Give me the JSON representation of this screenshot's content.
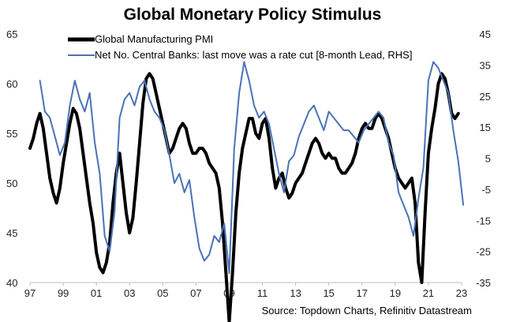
{
  "chart_data": {
    "type": "line",
    "title": "Global Monetary Policy Stimulus",
    "source": "Source: Topdown Charts, Refinitiv Datastream",
    "x_ticks": [
      "97",
      "99",
      "01",
      "03",
      "05",
      "07",
      "09",
      "11",
      "13",
      "15",
      "17",
      "19",
      "21",
      "23"
    ],
    "x_tick_years": [
      1997,
      1999,
      2001,
      2003,
      2005,
      2007,
      2009,
      2011,
      2013,
      2015,
      2017,
      2019,
      2021,
      2023
    ],
    "xlim": [
      1997,
      2023
    ],
    "left_axis": {
      "ticks": [
        "40",
        "45",
        "50",
        "55",
        "60",
        "65"
      ],
      "tick_values": [
        40,
        45,
        50,
        55,
        60,
        65
      ],
      "ylim": [
        40,
        65
      ]
    },
    "right_axis": {
      "ticks": [
        "-35",
        "-25",
        "-15",
        "-5",
        "5",
        "15",
        "25",
        "35",
        "45"
      ],
      "tick_values": [
        -35,
        -25,
        -15,
        -5,
        5,
        15,
        25,
        35,
        45
      ],
      "ylim": [
        -35,
        45
      ]
    },
    "series": [
      {
        "name": "Global Manufacturing PMI",
        "axis": "left",
        "color": "#000000",
        "x": [
          1997.0,
          1997.2,
          1997.4,
          1997.6,
          1997.8,
          1998.0,
          1998.2,
          1998.4,
          1998.6,
          1998.8,
          1999.0,
          1999.2,
          1999.4,
          1999.6,
          1999.8,
          2000.0,
          2000.2,
          2000.4,
          2000.6,
          2000.8,
          2001.0,
          2001.2,
          2001.4,
          2001.6,
          2001.8,
          2002.0,
          2002.2,
          2002.4,
          2002.6,
          2002.8,
          2003.0,
          2003.2,
          2003.4,
          2003.6,
          2003.8,
          2004.0,
          2004.2,
          2004.4,
          2004.6,
          2004.8,
          2005.0,
          2005.2,
          2005.4,
          2005.6,
          2005.8,
          2006.0,
          2006.2,
          2006.4,
          2006.6,
          2006.8,
          2007.0,
          2007.2,
          2007.4,
          2007.6,
          2007.8,
          2008.0,
          2008.2,
          2008.4,
          2008.6,
          2008.8,
          2009.0,
          2009.2,
          2009.4,
          2009.6,
          2009.8,
          2010.0,
          2010.2,
          2010.4,
          2010.6,
          2010.8,
          2011.0,
          2011.2,
          2011.4,
          2011.6,
          2011.8,
          2012.0,
          2012.2,
          2012.4,
          2012.6,
          2012.8,
          2013.0,
          2013.2,
          2013.4,
          2013.6,
          2013.8,
          2014.0,
          2014.2,
          2014.4,
          2014.6,
          2014.8,
          2015.0,
          2015.2,
          2015.4,
          2015.6,
          2015.8,
          2016.0,
          2016.2,
          2016.4,
          2016.6,
          2016.8,
          2017.0,
          2017.2,
          2017.4,
          2017.6,
          2017.8,
          2018.0,
          2018.2,
          2018.4,
          2018.6,
          2018.8,
          2019.0,
          2019.2,
          2019.4,
          2019.6,
          2019.8,
          2020.0,
          2020.2,
          2020.4,
          2020.6,
          2020.8,
          2021.0,
          2021.2,
          2021.4,
          2021.6,
          2021.8,
          2022.0,
          2022.2,
          2022.4,
          2022.6,
          2022.8
        ],
        "values": [
          53.5,
          54.5,
          56.0,
          57.0,
          55.5,
          53.0,
          50.5,
          49.0,
          48.0,
          49.5,
          52.0,
          54.0,
          56.0,
          57.5,
          57.0,
          55.5,
          53.0,
          50.5,
          48.0,
          46.0,
          43.0,
          41.5,
          41.0,
          42.0,
          44.0,
          48.0,
          51.0,
          53.0,
          50.0,
          47.0,
          45.0,
          46.5,
          50.0,
          54.0,
          58.0,
          60.5,
          61.0,
          60.5,
          59.0,
          57.5,
          56.0,
          54.5,
          53.0,
          53.5,
          54.5,
          55.5,
          56.0,
          55.5,
          54.0,
          53.0,
          53.0,
          53.5,
          53.5,
          53.0,
          52.0,
          51.5,
          51.0,
          49.5,
          46.0,
          41.0,
          36.0,
          41.0,
          47.0,
          51.0,
          53.5,
          55.0,
          56.5,
          56.5,
          55.0,
          54.5,
          56.0,
          56.5,
          54.5,
          51.5,
          49.5,
          50.5,
          51.0,
          49.5,
          48.5,
          49.0,
          50.0,
          50.5,
          51.0,
          52.0,
          53.0,
          54.0,
          54.5,
          54.0,
          53.0,
          52.5,
          53.0,
          52.5,
          52.5,
          51.5,
          51.0,
          51.0,
          51.5,
          52.0,
          53.0,
          54.5,
          55.5,
          56.0,
          55.5,
          55.5,
          56.5,
          57.0,
          56.5,
          55.5,
          54.5,
          53.0,
          51.5,
          50.5,
          50.0,
          49.5,
          50.0,
          50.5,
          48.0,
          42.0,
          40.0,
          47.0,
          53.0,
          55.5,
          57.5,
          60.0,
          61.0,
          60.5,
          59.0,
          57.0,
          56.5,
          57.0
        ]
      },
      {
        "name": "Net No. Central Banks: last move was a rate cut  [8-month Lead, RHS]",
        "axis": "right",
        "color": "#4a72b6",
        "x": [
          1997.6,
          1997.9,
          1998.2,
          1998.5,
          1998.8,
          1999.1,
          1999.4,
          1999.7,
          2000.0,
          2000.3,
          2000.6,
          2000.9,
          2001.2,
          2001.5,
          2001.8,
          2002.1,
          2002.4,
          2002.7,
          2003.0,
          2003.3,
          2003.6,
          2003.9,
          2004.2,
          2004.5,
          2004.8,
          2005.1,
          2005.4,
          2005.7,
          2006.0,
          2006.3,
          2006.6,
          2006.9,
          2007.2,
          2007.5,
          2007.8,
          2008.1,
          2008.4,
          2008.7,
          2009.0,
          2009.3,
          2009.6,
          2009.9,
          2010.2,
          2010.5,
          2010.8,
          2011.1,
          2011.4,
          2011.7,
          2012.0,
          2012.3,
          2012.6,
          2012.9,
          2013.2,
          2013.5,
          2013.8,
          2014.1,
          2014.4,
          2014.7,
          2015.0,
          2015.3,
          2015.6,
          2015.9,
          2016.2,
          2016.5,
          2016.8,
          2017.1,
          2017.4,
          2017.7,
          2018.0,
          2018.3,
          2018.6,
          2018.9,
          2019.2,
          2019.5,
          2019.8,
          2020.1,
          2020.4,
          2020.7,
          2021.0,
          2021.3,
          2021.6,
          2021.9,
          2022.2,
          2022.5,
          2022.8,
          2023.1
        ],
        "values": [
          30.0,
          20.0,
          18.0,
          12.0,
          6.0,
          10.0,
          22.0,
          30.0,
          24.0,
          20.0,
          26.0,
          10.0,
          0.0,
          -20.0,
          -25.0,
          -12.0,
          18.0,
          24.0,
          26.0,
          22.0,
          28.0,
          30.0,
          24.0,
          20.0,
          18.0,
          14.0,
          6.0,
          -3.0,
          0.0,
          -6.0,
          -2.0,
          -14.0,
          -24.0,
          -28.0,
          -26.0,
          -20.0,
          -22.0,
          -16.0,
          -32.0,
          8.0,
          26.0,
          36.0,
          30.0,
          22.0,
          18.0,
          20.0,
          16.0,
          8.0,
          0.0,
          -6.0,
          4.0,
          6.0,
          12.0,
          16.0,
          20.0,
          22.0,
          18.0,
          14.0,
          20.0,
          18.0,
          16.0,
          14.0,
          14.0,
          12.0,
          10.0,
          14.0,
          16.0,
          18.0,
          20.0,
          18.0,
          10.0,
          6.0,
          -6.0,
          -10.0,
          -14.0,
          -20.0,
          -8.0,
          2.0,
          30.0,
          36.0,
          34.0,
          30.0,
          26.0,
          14.0,
          4.0,
          -10.0
        ]
      }
    ]
  }
}
